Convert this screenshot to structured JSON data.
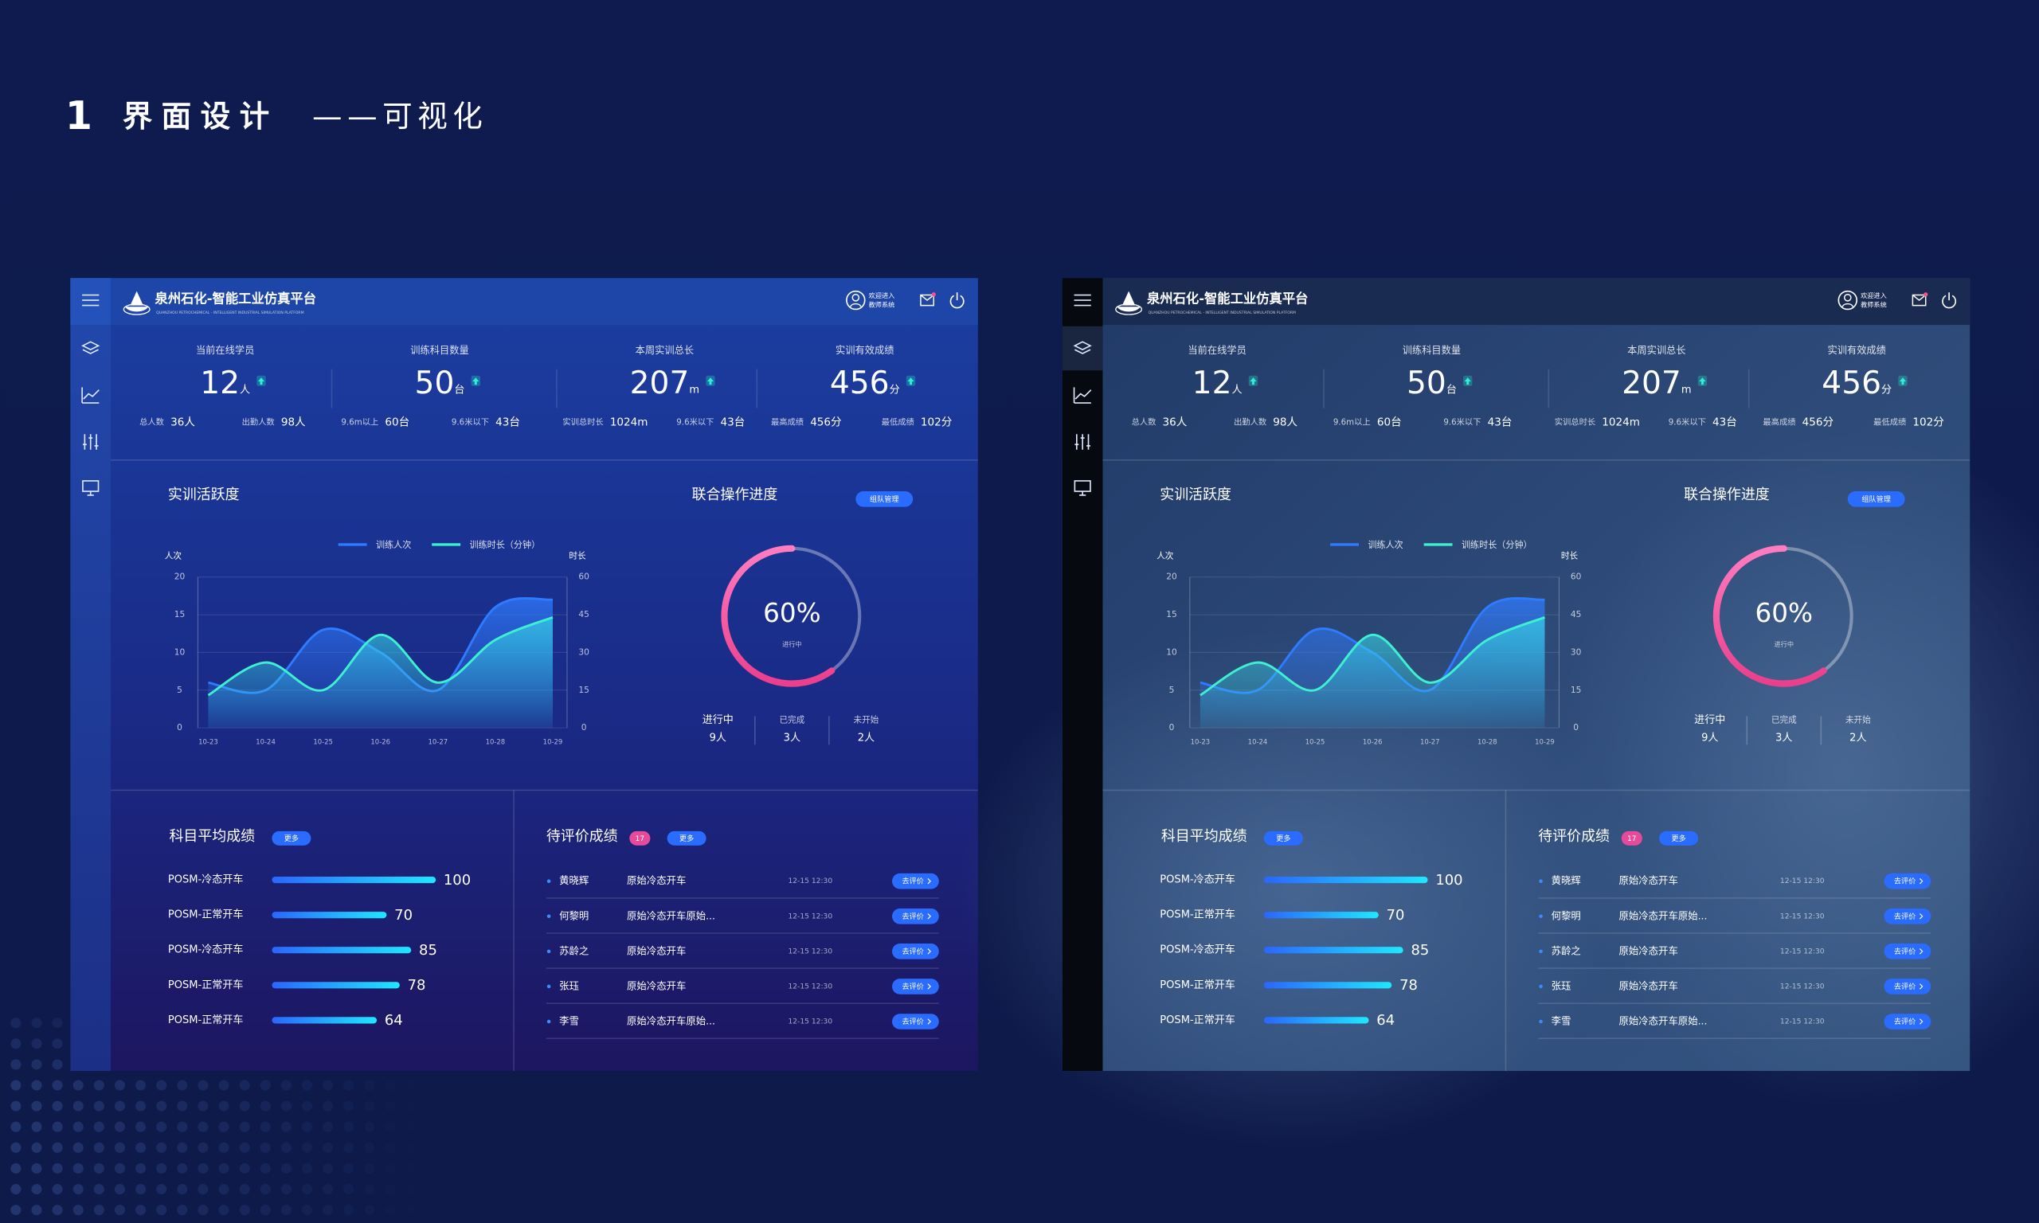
{
  "page_title": {
    "number": "1",
    "title": "界面设计",
    "subtitle": "——可视化"
  },
  "header": {
    "title": "泉州石化-智能工业仿真平台",
    "subtitle": "QUANZHOU PETROCHEMICAL - INTELLIGENT INDUSTRIAL SIMULATION PLATFORM",
    "welcome": [
      "欢迎进入",
      "教师系统"
    ]
  },
  "stats": [
    {
      "label": "当前在线学员",
      "value": 12,
      "unit": "人",
      "details": [
        {
          "label": "总人数",
          "value": "36人"
        },
        {
          "label": "出勤人数",
          "value": "98人"
        }
      ]
    },
    {
      "label": "训练科目数量",
      "value": 50,
      "unit": "台",
      "details": [
        {
          "label": "9.6m以上",
          "value": "60台"
        },
        {
          "label": "9.6米以下",
          "value": "43台"
        }
      ]
    },
    {
      "label": "本周实训总长",
      "value": 207,
      "unit": "m",
      "details": [
        {
          "label": "实训总时长",
          "value": "1024m"
        },
        {
          "label": "9.6米以下",
          "value": "43台"
        }
      ]
    },
    {
      "label": "实训有效成绩",
      "value": 456,
      "unit": "分",
      "details": [
        {
          "label": "最高成绩",
          "value": "456分"
        },
        {
          "label": "最低成绩",
          "value": "102分"
        }
      ]
    }
  ],
  "chart_data": [
    {
      "type": "line",
      "title": "实训活跃度",
      "categories": [
        "10-23",
        "10-24",
        "10-25",
        "10-26",
        "10-27",
        "10-28",
        "10-29"
      ],
      "series": [
        {
          "name": "训练人次",
          "color": "#2f7bff",
          "values": [
            6,
            5,
            13,
            10,
            5,
            16,
            17
          ]
        },
        {
          "name": "训练时长（分钟）",
          "color": "#3ef0d0",
          "values": [
            13,
            26,
            15,
            37,
            18,
            35,
            44
          ],
          "axis": "y2"
        }
      ],
      "ylabel": "人次",
      "y2label": "时长",
      "ylim": [
        0,
        20
      ],
      "yticks": [
        0,
        5,
        10,
        15,
        20
      ],
      "y2lim": [
        0,
        60
      ],
      "y2ticks": [
        0,
        15,
        30,
        45,
        60
      ],
      "grid": true
    },
    {
      "type": "donut",
      "title": "联合操作进度",
      "button": "组队管理",
      "values": [
        60
      ],
      "value_labels": [
        "60%"
      ],
      "caption": "进行中",
      "legend": [
        {
          "label": "进行中",
          "value": "9人"
        },
        {
          "label": "已完成",
          "value": "3人"
        },
        {
          "label": "未开始",
          "value": "2人"
        }
      ]
    },
    {
      "type": "bar",
      "orientation": "horizontal",
      "title": "科目平均成绩",
      "button": "更多",
      "categories": [
        "POSM-冷态开车",
        "POSM-正常开车",
        "POSM-冷态开车",
        "POSM-正常开车",
        "POSM-正常开车"
      ],
      "values": [
        100,
        70,
        85,
        78,
        64
      ],
      "xlim": [
        0,
        100
      ]
    }
  ],
  "pending": {
    "title": "待评价成绩",
    "badge": "17",
    "button": "更多",
    "rows": [
      {
        "name": "黄晓辉",
        "course": "原始冷态开车",
        "time": "12-15 12:30",
        "action": "去评价"
      },
      {
        "name": "何黎明",
        "course": "原始冷态开车原始...",
        "time": "12-15 12:30",
        "action": "去评价"
      },
      {
        "name": "苏龄之",
        "course": "原始冷态开车",
        "time": "12-15 12:30",
        "action": "去评价"
      },
      {
        "name": "张珏",
        "course": "原始冷态开车",
        "time": "12-15 12:30",
        "action": "去评价"
      },
      {
        "name": "李雪",
        "course": "原始冷态开车原始...",
        "time": "12-15 12:30",
        "action": "去评价"
      }
    ]
  }
}
